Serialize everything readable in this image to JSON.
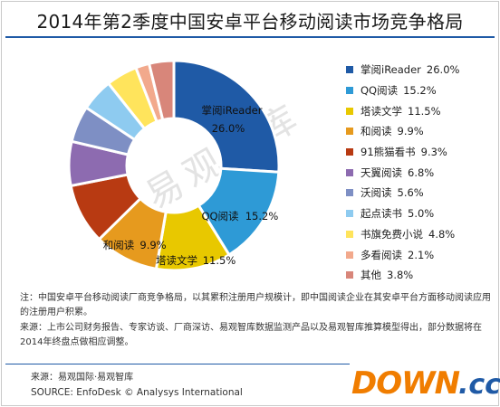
{
  "title": "2014年第2季度中国安卓平台移动阅读市场竞争格局",
  "watermark": "易观智库",
  "chart_data": {
    "type": "pie",
    "donut": true,
    "title": "2014年第2季度中国安卓平台移动阅读市场竞争格局",
    "value_unit": "%",
    "legend_position": "right",
    "categories": [
      "掌阅iReader",
      "QQ阅读",
      "塔读文学",
      "和阅读",
      "91熊猫看书",
      "天翼阅读",
      "沃阅读",
      "起点读书",
      "书旗免费小说",
      "多看阅读",
      "其他"
    ],
    "values": [
      26.0,
      15.2,
      11.5,
      9.9,
      9.3,
      6.8,
      5.6,
      5.0,
      4.8,
      2.1,
      3.8
    ],
    "value_labels": [
      "26.0%",
      "15.2%",
      "11.5%",
      "9.9%",
      "9.3%",
      "6.8%",
      "5.6%",
      "5.0%",
      "4.8%",
      "2.1%",
      "3.8%"
    ],
    "colors": [
      "#1f5aa6",
      "#2e9ad6",
      "#e8c800",
      "#e69a1e",
      "#b83a12",
      "#8d6bb0",
      "#7e8fc4",
      "#8ecbf0",
      "#ffe45c",
      "#f2a98c",
      "#d8867a"
    ]
  },
  "slice_labels": [
    {
      "name": "掌阅iReader",
      "value": "26.0%"
    },
    {
      "name": "QQ阅读",
      "value": "15.2%"
    },
    {
      "name": "塔读文学",
      "value": "11.5%"
    },
    {
      "name": "和阅读",
      "value": "9.9%"
    }
  ],
  "legend": [
    {
      "name": "掌阅iReader",
      "value": "26.0%"
    },
    {
      "name": "QQ阅读",
      "value": "15.2%"
    },
    {
      "name": "塔读文学",
      "value": "11.5%"
    },
    {
      "name": "和阅读",
      "value": "9.9%"
    },
    {
      "name": "91熊猫看书",
      "value": "9.3%"
    },
    {
      "name": "天翼阅读",
      "value": "6.8%"
    },
    {
      "name": "沃阅读",
      "value": "5.6%"
    },
    {
      "name": "起点读书",
      "value": "5.0%"
    },
    {
      "name": "书旗免费小说",
      "value": "4.8%"
    },
    {
      "name": "多看阅读",
      "value": "2.1%"
    },
    {
      "name": "其他",
      "value": "3.8%"
    }
  ],
  "notes": {
    "note1": "注：中国安卓平台移动阅读厂商竞争格局，以其累积注册用户规模计，即中国阅读企业在其安卓平台方面移动阅读应用的注册用户积累。",
    "note2": "来源：上市公司财务报告、专家访谈、厂商深访、易观智库数据监测产品以及易观智库推算模型得出，部分数据将在2014年终盘点做相应调整。"
  },
  "source": {
    "cn": "来源：易观国际·易观智库",
    "en": "SOURCE: EnfoDesk © Analysys International"
  },
  "logo": {
    "main": "DOWN",
    "tld": ".cc"
  }
}
